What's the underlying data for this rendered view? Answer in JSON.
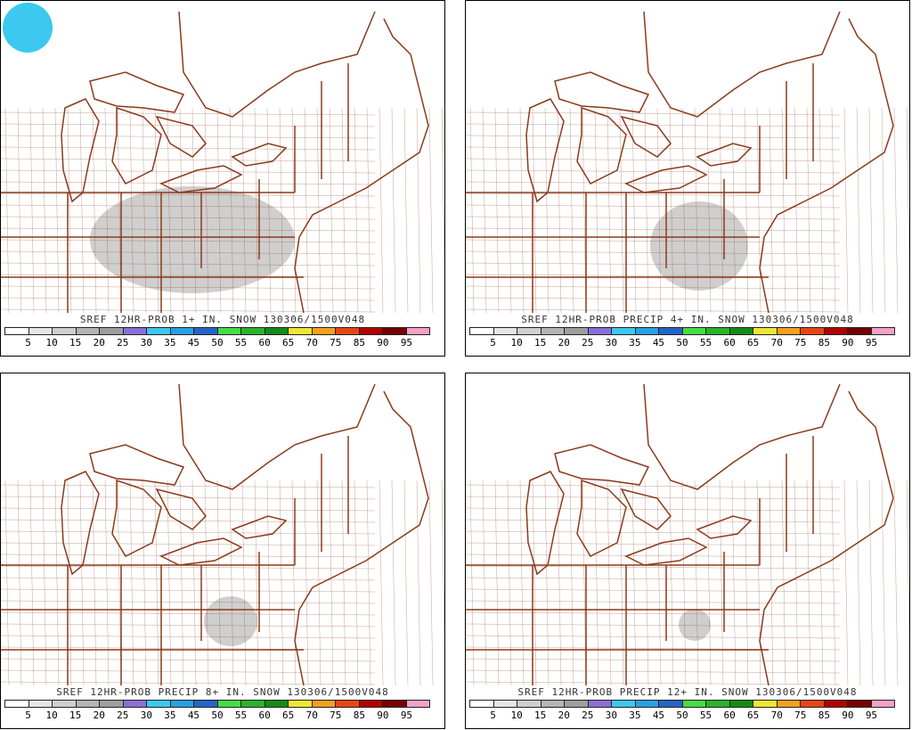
{
  "legend": {
    "labels": [
      "5",
      "10",
      "15",
      "20",
      "25",
      "30",
      "35",
      "45",
      "50",
      "55",
      "60",
      "65",
      "70",
      "75",
      "85",
      "90",
      "95"
    ],
    "colors": [
      "#ffffff",
      "#e6e6e6",
      "#cfcfcf",
      "#b4b4b4",
      "#9e9e9e",
      "#8c6fd6",
      "#3cc8f0",
      "#28a0e6",
      "#2464c8",
      "#46dc46",
      "#28b428",
      "#148c14",
      "#f0e632",
      "#f5a01e",
      "#e64614",
      "#b40000",
      "#780000",
      "#f5a0c8"
    ]
  },
  "colors": {
    "border": "#8b3a1a",
    "panel_border": "#000000"
  },
  "panels": [
    {
      "caption": "SREF 12HR-PROB 1+ IN. SNOW 130306/1500V048"
    },
    {
      "caption": "SREF 12HR-PROB PRECIP 4+ IN. SNOW 130306/1500V048"
    },
    {
      "caption": "SREF 12HR-PROB PRECIP 8+ IN. SNOW 130306/1500V048"
    },
    {
      "caption": "SREF 12HR-PROB PRECIP 12+ IN. SNOW 130306/1500V048"
    }
  ]
}
